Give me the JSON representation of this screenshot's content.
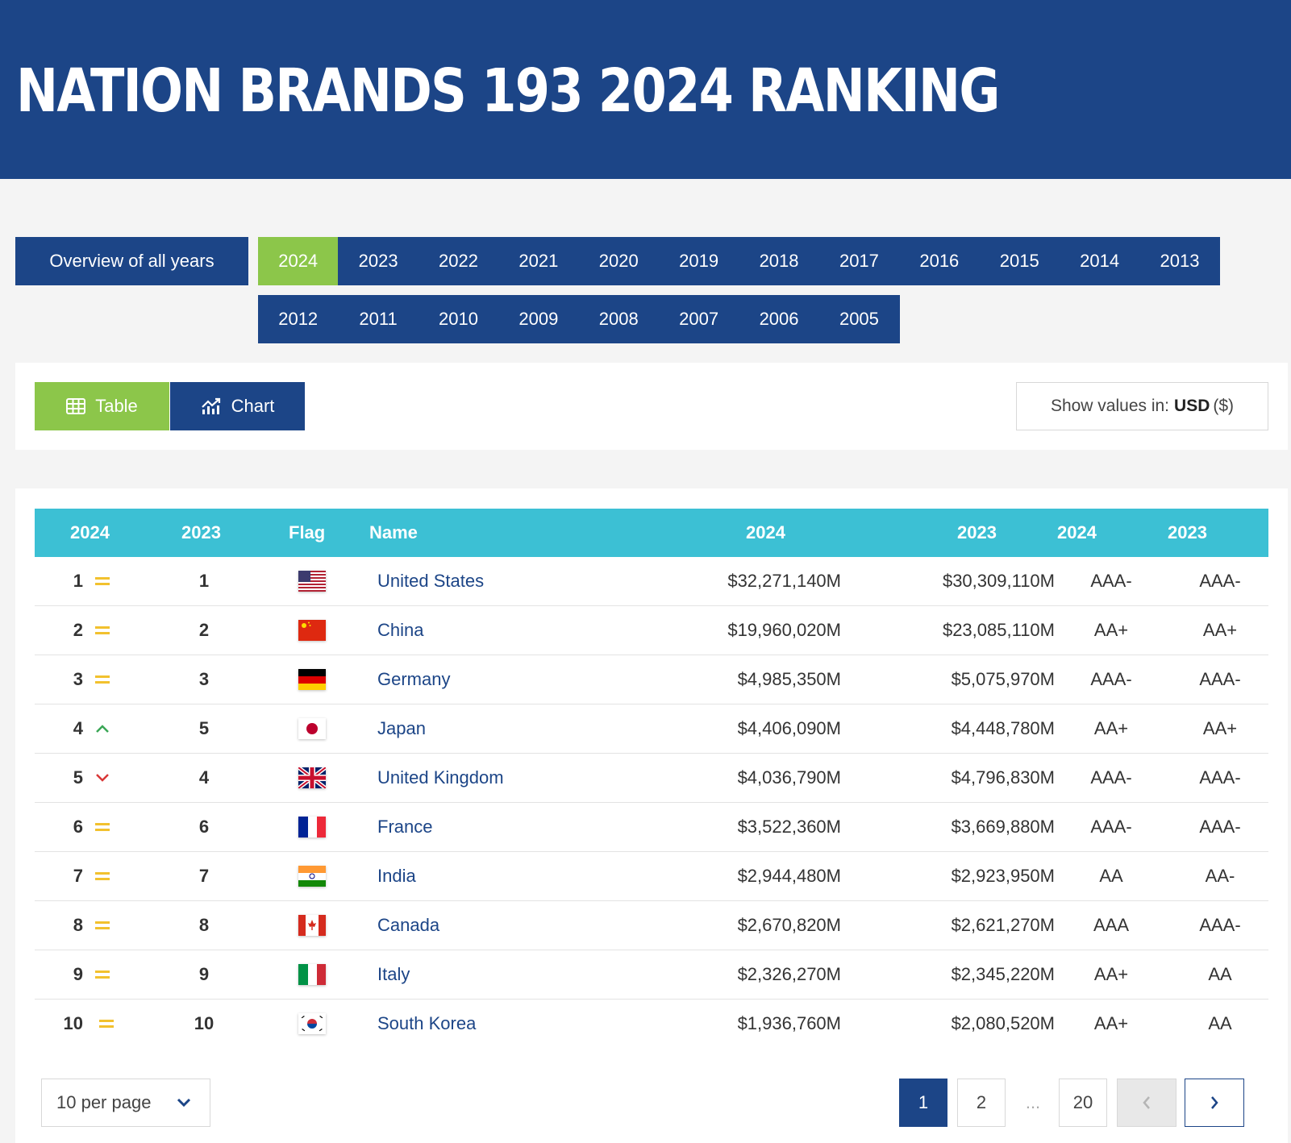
{
  "header": {
    "title": "NATION BRANDS 193 2024 RANKING"
  },
  "nav": {
    "overview_label": "Overview of all years",
    "years_row1": [
      "2024",
      "2023",
      "2022",
      "2021",
      "2020",
      "2019",
      "2018",
      "2017",
      "2016",
      "2015",
      "2014",
      "2013"
    ],
    "years_row2": [
      "2012",
      "2011",
      "2010",
      "2009",
      "2008",
      "2007",
      "2006",
      "2005"
    ],
    "active_year": "2024"
  },
  "toolbar": {
    "table_label": "Table",
    "chart_label": "Chart",
    "currency_prefix": "Show values in:",
    "currency_code": "USD",
    "currency_symbol": "($)"
  },
  "table": {
    "headers": {
      "rank_2024": "2024",
      "rank_2023": "2023",
      "flag": "Flag",
      "name": "Name",
      "value_2024": "2024",
      "value_2023": "2023",
      "rating_2024": "2024",
      "rating_2023": "2023"
    },
    "rows": [
      {
        "rank": "1",
        "trend": "same",
        "prev": "1",
        "flag": "us",
        "name": "United States",
        "v24": "$32,271,140M",
        "v23": "$30,309,110M",
        "r24": "AAA-",
        "r23": "AAA-"
      },
      {
        "rank": "2",
        "trend": "same",
        "prev": "2",
        "flag": "cn",
        "name": "China",
        "v24": "$19,960,020M",
        "v23": "$23,085,110M",
        "r24": "AA+",
        "r23": "AA+"
      },
      {
        "rank": "3",
        "trend": "same",
        "prev": "3",
        "flag": "de",
        "name": "Germany",
        "v24": "$4,985,350M",
        "v23": "$5,075,970M",
        "r24": "AAA-",
        "r23": "AAA-"
      },
      {
        "rank": "4",
        "trend": "up",
        "prev": "5",
        "flag": "jp",
        "name": "Japan",
        "v24": "$4,406,090M",
        "v23": "$4,448,780M",
        "r24": "AA+",
        "r23": "AA+"
      },
      {
        "rank": "5",
        "trend": "down",
        "prev": "4",
        "flag": "gb",
        "name": "United Kingdom",
        "v24": "$4,036,790M",
        "v23": "$4,796,830M",
        "r24": "AAA-",
        "r23": "AAA-"
      },
      {
        "rank": "6",
        "trend": "same",
        "prev": "6",
        "flag": "fr",
        "name": "France",
        "v24": "$3,522,360M",
        "v23": "$3,669,880M",
        "r24": "AAA-",
        "r23": "AAA-"
      },
      {
        "rank": "7",
        "trend": "same",
        "prev": "7",
        "flag": "in",
        "name": "India",
        "v24": "$2,944,480M",
        "v23": "$2,923,950M",
        "r24": "AA",
        "r23": "AA-"
      },
      {
        "rank": "8",
        "trend": "same",
        "prev": "8",
        "flag": "ca",
        "name": "Canada",
        "v24": "$2,670,820M",
        "v23": "$2,621,270M",
        "r24": "AAA",
        "r23": "AAA-"
      },
      {
        "rank": "9",
        "trend": "same",
        "prev": "9",
        "flag": "it",
        "name": "Italy",
        "v24": "$2,326,270M",
        "v23": "$2,345,220M",
        "r24": "AA+",
        "r23": "AA"
      },
      {
        "rank": "10",
        "trend": "same",
        "prev": "10",
        "flag": "kr",
        "name": "South Korea",
        "v24": "$1,936,760M",
        "v23": "$2,080,520M",
        "r24": "AA+",
        "r23": "AA"
      }
    ]
  },
  "pagination": {
    "per_page_label": "10 per page",
    "pages": [
      "1",
      "2",
      "...",
      "20"
    ],
    "current": "1"
  },
  "colors": {
    "navy": "#1c4587",
    "green": "#8cc64a",
    "teal": "#3cc0d4",
    "trend_same": "#f2c12e",
    "trend_up": "#3aa656",
    "trend_down": "#d93636"
  }
}
